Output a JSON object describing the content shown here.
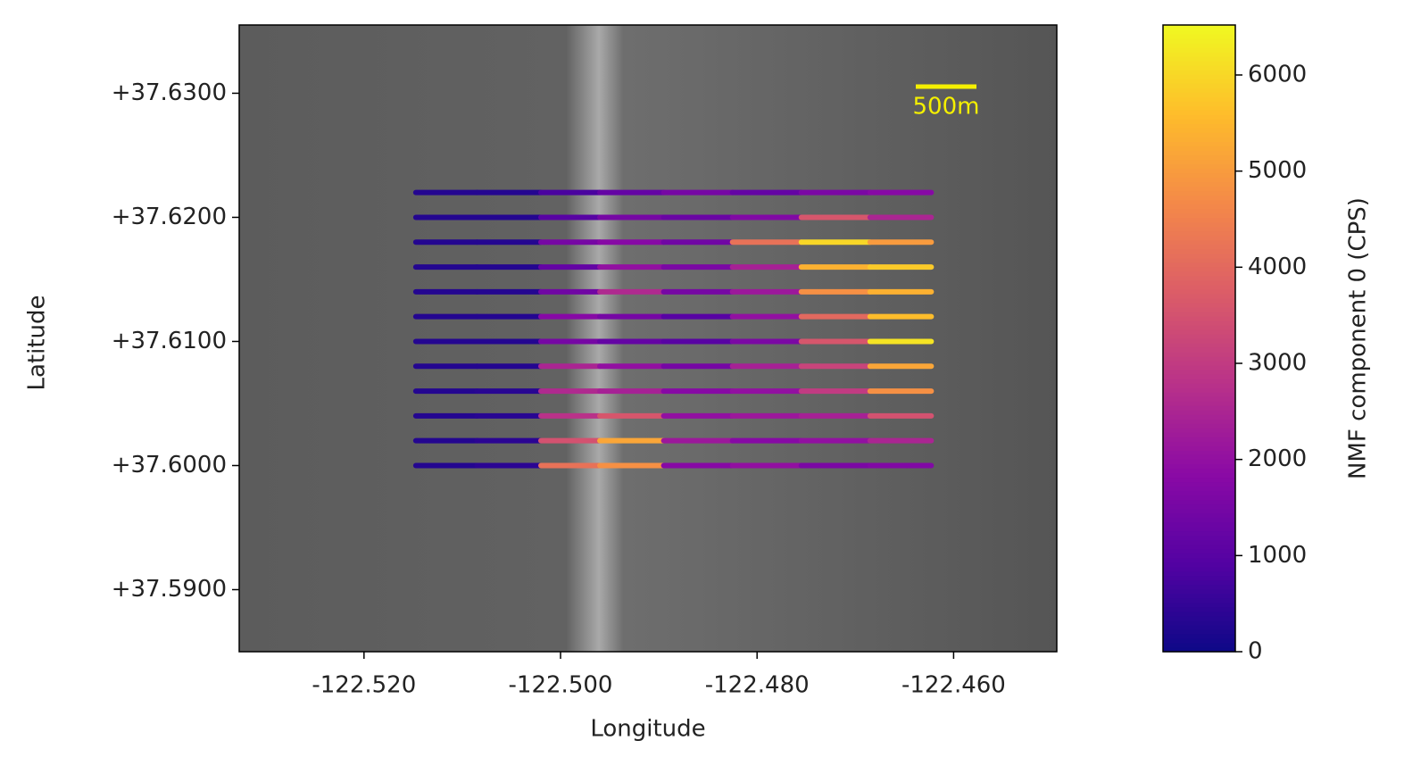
{
  "chart_data": {
    "type": "scatter",
    "x_label": "Longitude",
    "y_label": "Latitude",
    "colorbar_label": "NMF component 0 (CPS)",
    "scale_bar_label": "500m",
    "colormap": "plasma",
    "xlim": [
      -122.5327,
      -122.4495
    ],
    "ylim": [
      37.585,
      37.6355
    ],
    "clim": [
      0,
      6520
    ],
    "xticks": [
      {
        "value": -122.52,
        "label": "-122.520"
      },
      {
        "value": -122.5,
        "label": "-122.500"
      },
      {
        "value": -122.48,
        "label": "-122.480"
      },
      {
        "value": -122.46,
        "label": "-122.460"
      }
    ],
    "yticks": [
      {
        "value": 37.59,
        "label": "+37.5900"
      },
      {
        "value": 37.6,
        "label": "+37.6000"
      },
      {
        "value": 37.61,
        "label": "+37.6100"
      },
      {
        "value": 37.62,
        "label": "+37.6200"
      },
      {
        "value": 37.63,
        "label": "+37.6300"
      }
    ],
    "cticks": [
      0,
      1000,
      2000,
      3000,
      4000,
      5000,
      6000
    ],
    "x": [
      -122.512,
      -122.505,
      -122.499,
      -122.493,
      -122.486,
      -122.479,
      -122.472,
      -122.465
    ],
    "rows": [
      {
        "latitude": 37.6,
        "values": [
          300,
          400,
          4200,
          4800,
          1800,
          2000,
          1600,
          1700
        ]
      },
      {
        "latitude": 37.602,
        "values": [
          300,
          400,
          3500,
          5200,
          2200,
          1800,
          2000,
          2500
        ]
      },
      {
        "latitude": 37.604,
        "values": [
          300,
          350,
          2800,
          3600,
          2000,
          2200,
          2400,
          3500
        ]
      },
      {
        "latitude": 37.606,
        "values": [
          300,
          350,
          2600,
          2400,
          1800,
          2000,
          3000,
          4800
        ]
      },
      {
        "latitude": 37.608,
        "values": [
          300,
          300,
          2500,
          2000,
          1500,
          2400,
          3200,
          5200
        ]
      },
      {
        "latitude": 37.61,
        "values": [
          300,
          300,
          1500,
          1200,
          1000,
          1600,
          3600,
          6200
        ]
      },
      {
        "latitude": 37.612,
        "values": [
          300,
          300,
          1800,
          1500,
          1000,
          2000,
          4000,
          5600
        ]
      },
      {
        "latitude": 37.614,
        "values": [
          300,
          300,
          1400,
          2600,
          1500,
          2200,
          4800,
          5400
        ]
      },
      {
        "latitude": 37.616,
        "values": [
          300,
          300,
          1200,
          2000,
          1600,
          2400,
          5400,
          5800
        ]
      },
      {
        "latitude": 37.618,
        "values": [
          300,
          300,
          1500,
          1800,
          1400,
          4200,
          6000,
          5000
        ]
      },
      {
        "latitude": 37.62,
        "values": [
          300,
          300,
          1000,
          1500,
          1300,
          1700,
          3600,
          2500
        ]
      },
      {
        "latitude": 37.622,
        "values": [
          300,
          300,
          800,
          1200,
          1500,
          1200,
          1600,
          1800
        ]
      }
    ]
  }
}
